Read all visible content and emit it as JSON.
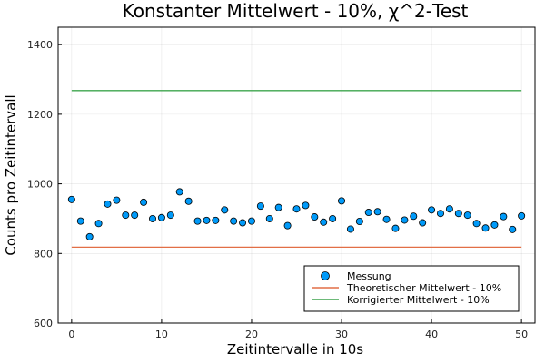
{
  "chart_data": {
    "type": "scatter",
    "title": "Konstanter Mittelwert - 10%, χ^2-Test",
    "xlabel": "Zeitintervalle in 10s",
    "ylabel": "Counts pro Zeitintervall",
    "xlim": [
      -1.5,
      51.5
    ],
    "ylim": [
      600,
      1450
    ],
    "xticks": [
      0,
      10,
      20,
      30,
      40,
      50
    ],
    "yticks": [
      600,
      800,
      1000,
      1200,
      1400
    ],
    "grid": true,
    "legend_position": "bottom-right",
    "series": [
      {
        "name": "Messung",
        "kind": "scatter",
        "color": "#009af9",
        "x": [
          0,
          1,
          2,
          3,
          4,
          5,
          6,
          7,
          8,
          9,
          10,
          11,
          12,
          13,
          14,
          15,
          16,
          17,
          18,
          19,
          20,
          21,
          22,
          23,
          24,
          25,
          26,
          27,
          28,
          29,
          30,
          31,
          32,
          33,
          34,
          35,
          36,
          37,
          38,
          39,
          40,
          41,
          42,
          43,
          44,
          45,
          46,
          47,
          48,
          49,
          50
        ],
        "y": [
          955,
          893,
          848,
          886,
          942,
          953,
          910,
          910,
          947,
          900,
          903,
          910,
          977,
          950,
          893,
          895,
          895,
          925,
          893,
          888,
          893,
          936,
          900,
          932,
          880,
          928,
          938,
          905,
          890,
          900,
          951,
          870,
          892,
          918,
          920,
          898,
          872,
          896,
          907,
          888,
          925,
          915,
          928,
          915,
          910,
          886,
          873,
          882,
          906,
          869,
          908
        ]
      },
      {
        "name": "Theoretischer Mittelwert - 10%",
        "kind": "line",
        "color": "#e26f46",
        "x": [
          0,
          50
        ],
        "y": [
          818,
          818
        ]
      },
      {
        "name": "Korrigierter Mittelwert - 10%",
        "kind": "line",
        "color": "#3da44d",
        "x": [
          0,
          50
        ],
        "y": [
          1268,
          1268
        ]
      }
    ]
  }
}
